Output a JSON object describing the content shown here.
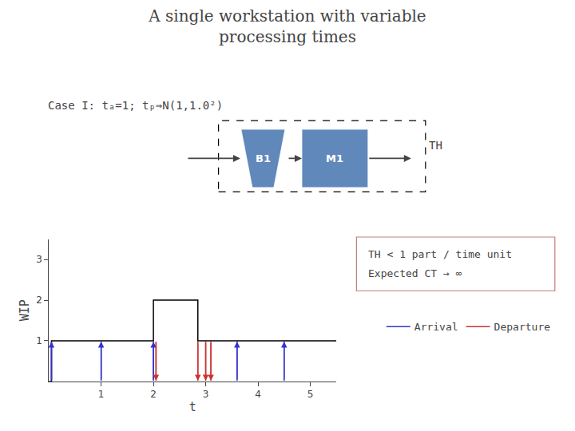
{
  "chart_data": {
    "type": "line",
    "title": "A single workstation with variable\nprocessing times",
    "x_label": "t",
    "y_label": "WIP",
    "xlim": [
      0,
      5.5
    ],
    "ylim": [
      0,
      3.5
    ],
    "xticks": [
      1,
      2,
      3,
      4,
      5
    ],
    "yticks": [
      1,
      2,
      3
    ],
    "grid": false,
    "legend": "bottom right",
    "series": [
      {
        "type": "line",
        "line_style": "step",
        "color": "#000000",
        "x": [
          0.0,
          0.05,
          1.0,
          2.0,
          2.05,
          2.85,
          3.0,
          3.6,
          4.5,
          5.5
        ],
        "values": [
          0,
          1,
          1,
          2,
          2,
          1,
          1,
          1,
          1,
          1
        ]
      },
      {
        "type": "arrow",
        "name": "Arrival",
        "marker": "up",
        "color": "#3333cc",
        "x": [
          0.05,
          1.0,
          2.0,
          3.6,
          4.5
        ]
      },
      {
        "type": "arrow",
        "name": "Departure",
        "marker": "down",
        "color": "#cc3333",
        "x": [
          2.05,
          2.85,
          3.0,
          3.1
        ]
      }
    ],
    "annotations": [
      {
        "text": "Case I: tₐ=1; tₚ⇒N(1,1.0²)"
      },
      {
        "text": "B1",
        "color": "#6088bb"
      },
      {
        "text": "M1",
        "color": "#6088bb"
      },
      {
        "text": "TH"
      },
      {
        "text": "TH < 1 part / time unit",
        "color": "#c08080"
      },
      {
        "text": "Expected CT → ∞",
        "color": "#c08080"
      }
    ]
  }
}
